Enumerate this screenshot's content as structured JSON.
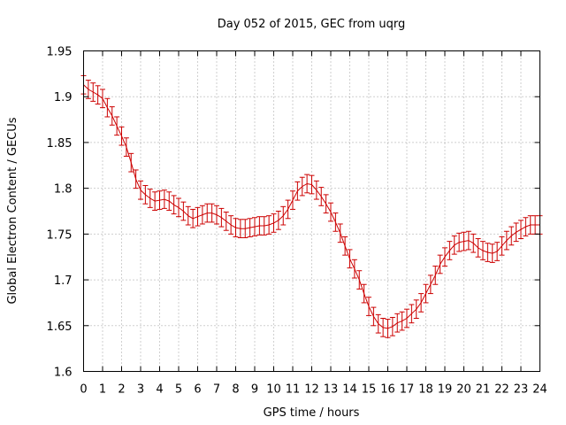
{
  "chart_data": {
    "type": "line",
    "title": "Day 052 of 2015, GEC from uqrg",
    "xlabel": "GPS time / hours",
    "ylabel": "Global Electron Content / GECUs",
    "xlim": [
      0,
      24
    ],
    "ylim": [
      1.6,
      1.95
    ],
    "xticks": [
      0,
      1,
      2,
      3,
      4,
      5,
      6,
      7,
      8,
      9,
      10,
      11,
      12,
      13,
      14,
      15,
      16,
      17,
      18,
      19,
      20,
      21,
      22,
      23,
      24
    ],
    "yticks": [
      1.6,
      1.65,
      1.7,
      1.75,
      1.8,
      1.85,
      1.9,
      1.95
    ],
    "ytick_labels": [
      "1.6",
      "1.65",
      "1.7",
      "1.75",
      "1.8",
      "1.85",
      "1.9",
      "1.95"
    ],
    "grid": true,
    "legend": "none",
    "error_bar_halfwidth": 0.01,
    "color": "#cc0000",
    "series": [
      {
        "x": [
          0,
          0.25,
          0.5,
          0.75,
          1,
          1.25,
          1.5,
          1.75,
          2,
          2.25,
          2.5,
          2.75,
          3,
          3.25,
          3.5,
          3.75,
          4,
          4.25,
          4.5,
          4.75,
          5,
          5.25,
          5.5,
          5.75,
          6,
          6.25,
          6.5,
          6.75,
          7,
          7.25,
          7.5,
          7.75,
          8,
          8.25,
          8.5,
          8.75,
          9,
          9.25,
          9.5,
          9.75,
          10,
          10.25,
          10.5,
          10.75,
          11,
          11.25,
          11.5,
          11.75,
          12,
          12.25,
          12.5,
          12.75,
          13,
          13.25,
          13.5,
          13.75,
          14,
          14.25,
          14.5,
          14.75,
          15,
          15.25,
          15.5,
          15.75,
          16,
          16.25,
          16.5,
          16.75,
          17,
          17.25,
          17.5,
          17.75,
          18,
          18.25,
          18.5,
          18.75,
          19,
          19.25,
          19.5,
          19.75,
          20,
          20.25,
          20.5,
          20.75,
          21,
          21.25,
          21.5,
          21.75,
          22,
          22.25,
          22.5,
          22.75,
          23,
          23.25,
          23.5,
          23.75,
          24
        ],
        "y": [
          1.913,
          1.908,
          1.905,
          1.902,
          1.898,
          1.888,
          1.879,
          1.868,
          1.857,
          1.845,
          1.828,
          1.81,
          1.798,
          1.793,
          1.789,
          1.786,
          1.787,
          1.788,
          1.786,
          1.782,
          1.779,
          1.775,
          1.77,
          1.767,
          1.769,
          1.771,
          1.773,
          1.773,
          1.771,
          1.768,
          1.764,
          1.76,
          1.757,
          1.756,
          1.756,
          1.757,
          1.758,
          1.759,
          1.759,
          1.76,
          1.762,
          1.765,
          1.77,
          1.777,
          1.787,
          1.797,
          1.802,
          1.805,
          1.804,
          1.798,
          1.791,
          1.783,
          1.774,
          1.763,
          1.751,
          1.737,
          1.723,
          1.712,
          1.7,
          1.685,
          1.671,
          1.66,
          1.652,
          1.648,
          1.647,
          1.649,
          1.653,
          1.655,
          1.658,
          1.663,
          1.668,
          1.675,
          1.685,
          1.695,
          1.705,
          1.717,
          1.725,
          1.732,
          1.738,
          1.741,
          1.742,
          1.743,
          1.74,
          1.735,
          1.732,
          1.73,
          1.729,
          1.731,
          1.737,
          1.743,
          1.748,
          1.752,
          1.755,
          1.758,
          1.76,
          1.76,
          1.76
        ]
      }
    ]
  }
}
